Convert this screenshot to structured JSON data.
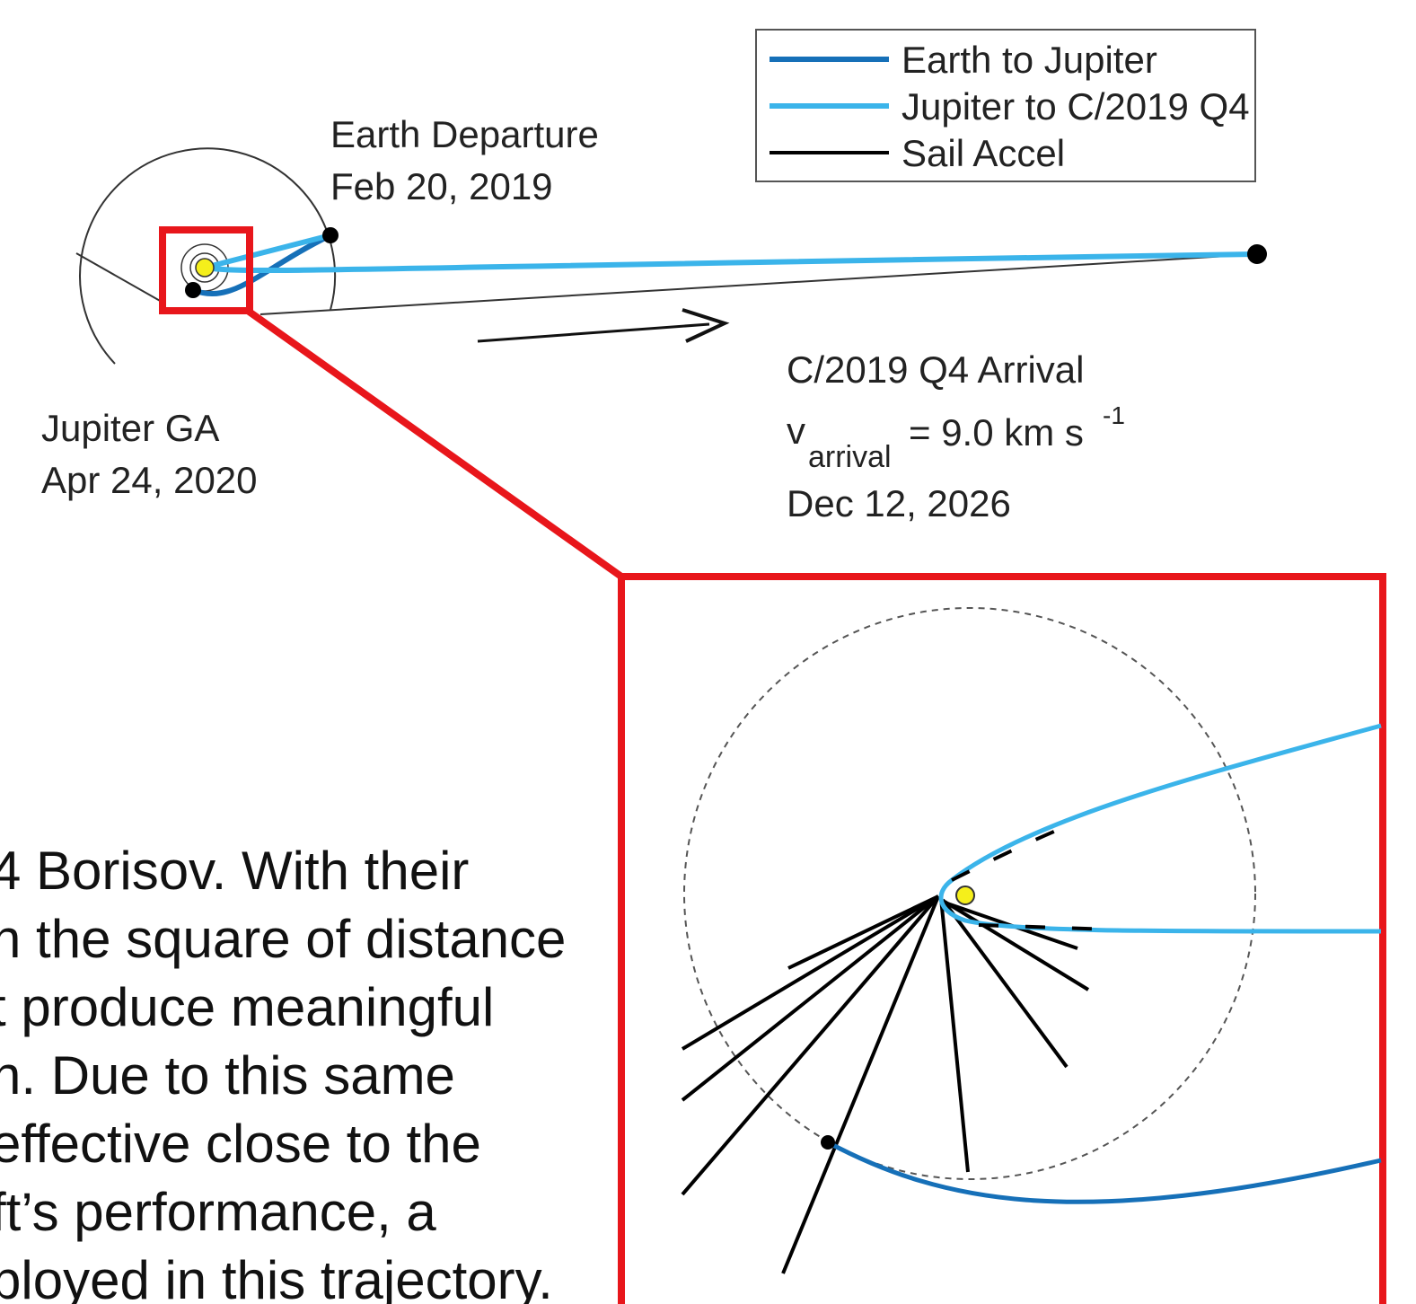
{
  "legend": {
    "entries": [
      "Earth to Jupiter",
      "Jupiter to C/2019 Q4",
      "Sail Accel"
    ]
  },
  "labels": {
    "earth_departure": {
      "title": "Earth Departure",
      "date": "Feb 20, 2019"
    },
    "jupiter_ga": {
      "title": "Jupiter GA",
      "date": "Apr 24, 2020"
    },
    "arrival": {
      "title": "C/2019 Q4 Arrival",
      "v": "v",
      "v_sub": "arrival",
      "v_eq": "= 9.0 km s",
      "v_sup": "-1",
      "date": "Dec 12, 2026"
    }
  },
  "body_text": {
    "lines": [
      "4 Borisov. With their",
      "n the square of distance",
      "t produce meaningful",
      "n. Due to this same",
      "effective close to the",
      "ft’s performance, a",
      "ployed in this trajectory."
    ]
  }
}
